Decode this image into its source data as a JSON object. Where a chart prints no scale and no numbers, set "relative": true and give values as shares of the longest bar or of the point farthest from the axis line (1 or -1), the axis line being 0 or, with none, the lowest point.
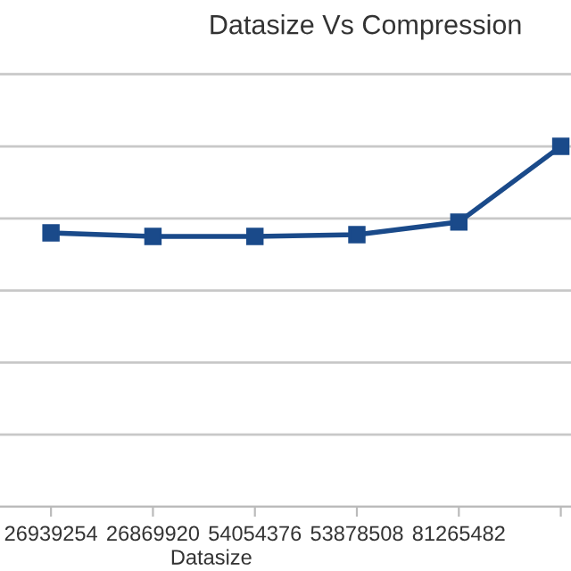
{
  "chart_data": {
    "type": "line",
    "title": "Datasize Vs Compression",
    "xlabel": "Datasize",
    "categories": [
      "26939254",
      "26869920",
      "54054376",
      "53878508",
      "81265482",
      null
    ],
    "relative": true,
    "series": [
      {
        "color": "#1a4a8a",
        "values": [
          0.76,
          0.75,
          0.75,
          0.755,
          0.79,
          1
        ]
      }
    ],
    "marker": "square",
    "line_style": "solid",
    "grid": "y",
    "legend": false
  }
}
